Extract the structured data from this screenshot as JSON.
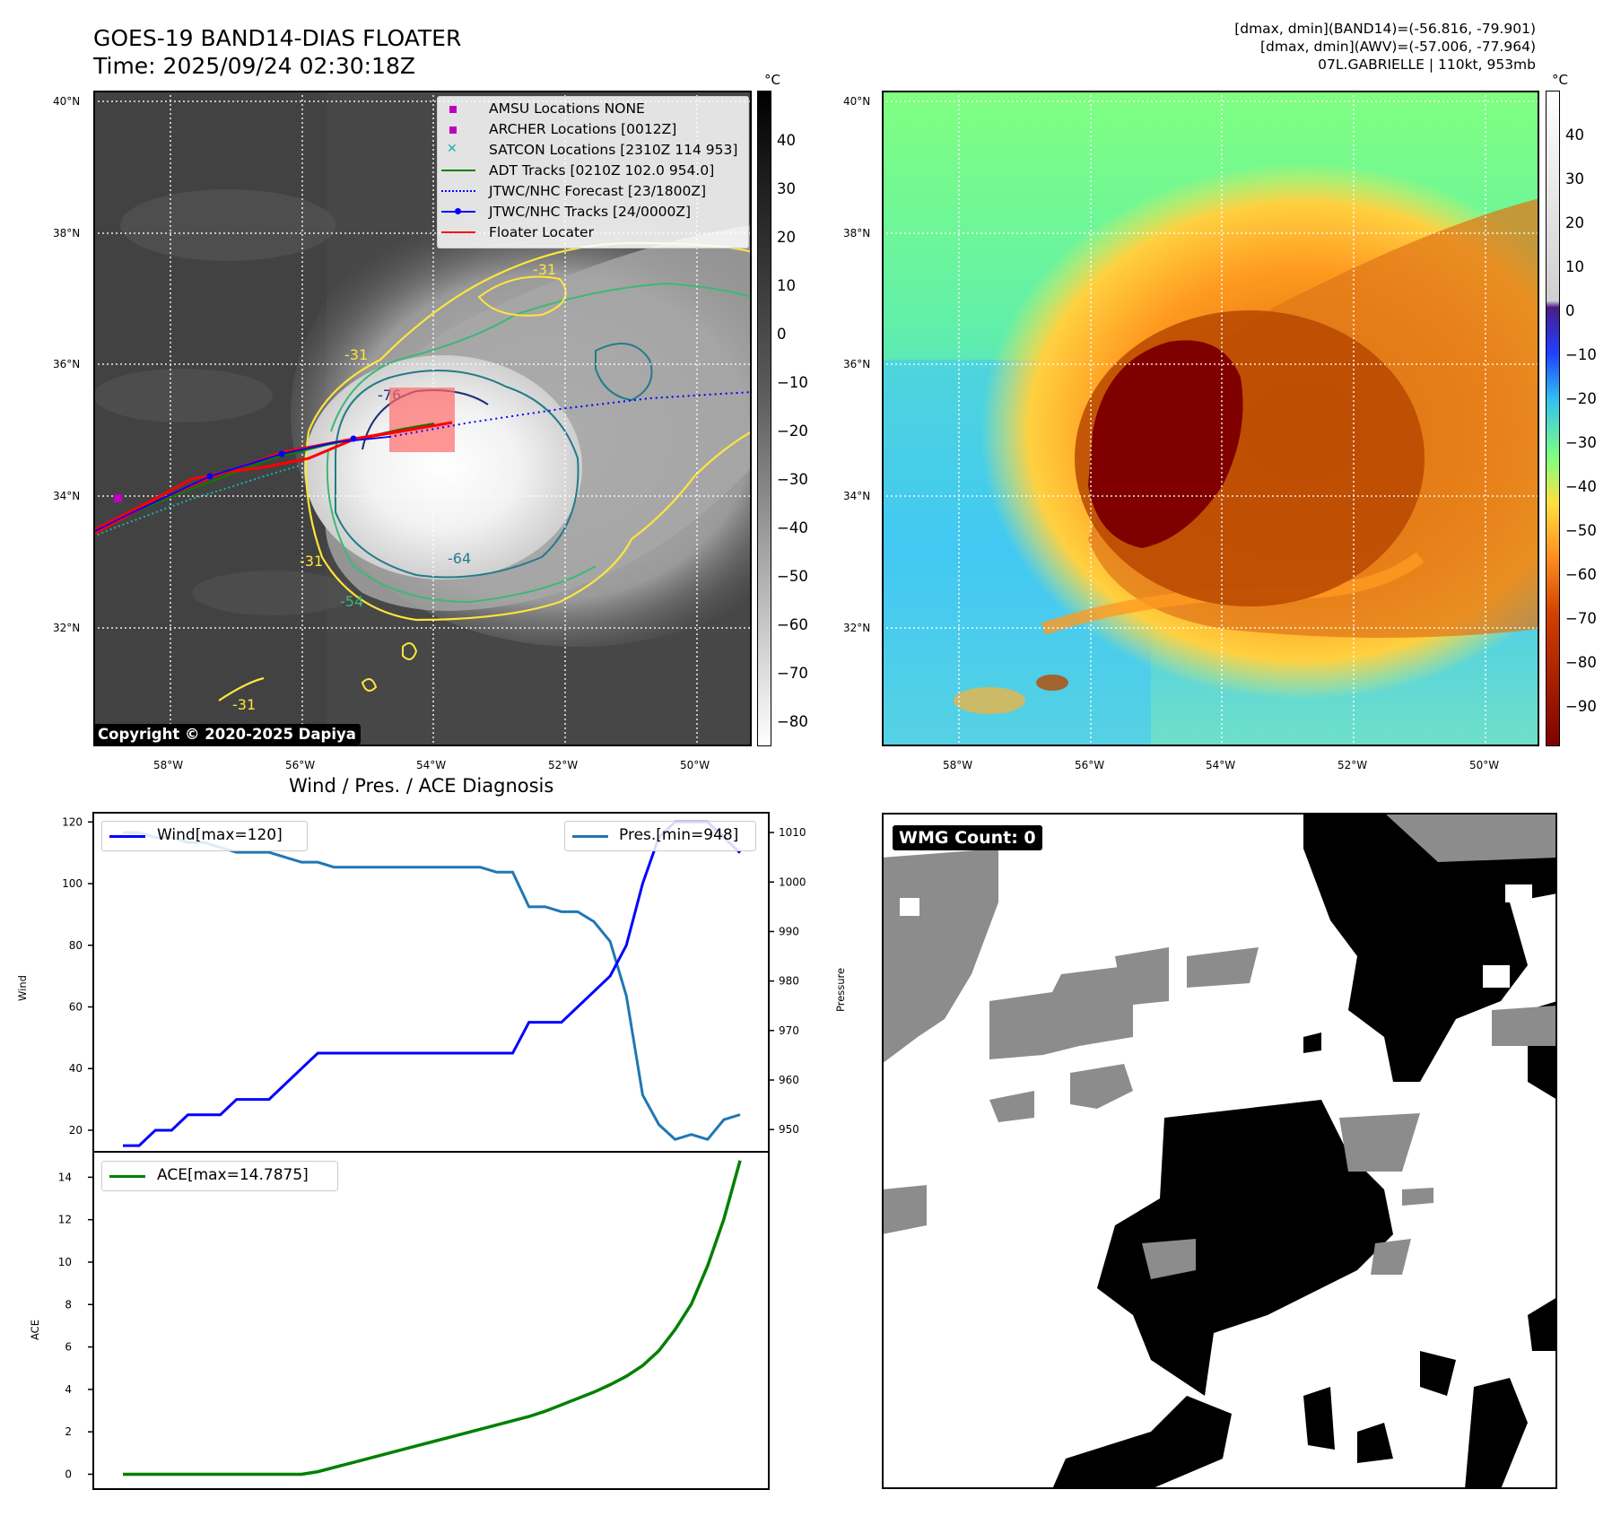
{
  "titles": {
    "main_line1": "GOES-19 BAND14-DIAS FLOATER",
    "main_line2": "Time: 2025/09/24 02:30:18Z",
    "info_line1": "[dmax, dmin](BAND14)=(-56.816, -79.901)",
    "info_line2": "[dmax, dmin](AWV)=(-57.006, -77.964)",
    "info_line3": "07L.GABRIELLE | 110kt, 953mb",
    "diagnosis": "Wind / Pres. / ACE Diagnosis",
    "copyright": "Copyright © 2020-2025 Dapiya",
    "wmg": "WMG Count: 0"
  },
  "map": {
    "lat_labels": [
      "40°N",
      "38°N",
      "36°N",
      "34°N",
      "32°N"
    ],
    "lon_labels": [
      "58°W",
      "56°W",
      "54°W",
      "52°W",
      "50°W"
    ],
    "contour_labels": [
      "-31",
      "-64",
      "-76",
      "-31",
      "-31",
      "-54",
      "-31"
    ],
    "legend": [
      {
        "label": "AMSU Locations NONE",
        "color": "#c000c0",
        "marker": "square"
      },
      {
        "label": "ARCHER Locations [0012Z]",
        "color": "#c000c0",
        "marker": "square"
      },
      {
        "label": "SATCON Locations [2310Z 114 953]",
        "color": "#1ab0a8",
        "marker": "x"
      },
      {
        "label": "ADT Tracks [0210Z 102.0 954.0]",
        "color": "#008000",
        "marker": "line"
      },
      {
        "label": "JTWC/NHC Forecast [23/1800Z]",
        "color": "#0000ff",
        "marker": "dotted"
      },
      {
        "label": "JTWC/NHC Tracks [24/0000Z]",
        "color": "#0000ff",
        "marker": "line-dot"
      },
      {
        "label": "Floater Locater",
        "color": "#ff0000",
        "marker": "line"
      }
    ]
  },
  "colorbars": {
    "unit": "°C",
    "left_ticks": [
      "40",
      "30",
      "20",
      "10",
      "0",
      "−10",
      "−20",
      "−30",
      "−40",
      "−50",
      "−60",
      "−70",
      "−80"
    ],
    "right_ticks": [
      "40",
      "30",
      "20",
      "10",
      "0",
      "−10",
      "−20",
      "−30",
      "−40",
      "−50",
      "−60",
      "−70",
      "−80",
      "−90"
    ]
  },
  "chart_data": [
    {
      "type": "line",
      "title": "Wind / Pres. / ACE Diagnosis",
      "ylabel": "Wind",
      "ylabel_right": "Pressure",
      "ylim": [
        13,
        123
      ],
      "ylim_right": [
        945.5,
        1014
      ],
      "y_ticks": [
        "120",
        "100",
        "80",
        "60",
        "40",
        "20"
      ],
      "y_ticks_right": [
        "1010",
        "1000",
        "990",
        "980",
        "970",
        "960",
        "950"
      ],
      "x": [
        0,
        1,
        2,
        3,
        4,
        5,
        6,
        7,
        8,
        9,
        10,
        11,
        12,
        13,
        14,
        15,
        16,
        17,
        18,
        19,
        20,
        21,
        22,
        23,
        24,
        25,
        26,
        27,
        28,
        29,
        30,
        31,
        32,
        33,
        34,
        35,
        36,
        37,
        38
      ],
      "series": [
        {
          "name": "Wind[max=120]",
          "axis": "left",
          "color": "#0000ff",
          "values": [
            15,
            15,
            20,
            20,
            25,
            25,
            25,
            30,
            30,
            30,
            35,
            40,
            45,
            45,
            45,
            45,
            45,
            45,
            45,
            45,
            45,
            45,
            45,
            45,
            45,
            55,
            55,
            55,
            60,
            65,
            70,
            80,
            100,
            115,
            120,
            120,
            120,
            115,
            110
          ]
        },
        {
          "name": "Pres.[min=948]",
          "axis": "right",
          "color": "#1f77b4",
          "values": [
            1010,
            1010,
            1009,
            1009,
            1008,
            1008,
            1007,
            1006,
            1006,
            1006,
            1005,
            1004,
            1004,
            1003,
            1003,
            1003,
            1003,
            1003,
            1003,
            1003,
            1003,
            1003,
            1003,
            1002,
            1002,
            995,
            995,
            994,
            994,
            992,
            988,
            977,
            957,
            951,
            948,
            949,
            948,
            952,
            953
          ]
        }
      ]
    },
    {
      "type": "line",
      "ylabel": "ACE",
      "ylim": [
        -0.7,
        15.2
      ],
      "y_ticks": [
        "14",
        "12",
        "10",
        "8",
        "6",
        "4",
        "2",
        "0"
      ],
      "x": [
        0,
        1,
        2,
        3,
        4,
        5,
        6,
        7,
        8,
        9,
        10,
        11,
        12,
        13,
        14,
        15,
        16,
        17,
        18,
        19,
        20,
        21,
        22,
        23,
        24,
        25,
        26,
        27,
        28,
        29,
        30,
        31,
        32,
        33,
        34,
        35,
        36,
        37,
        38
      ],
      "series": [
        {
          "name": "ACE[max=14.7875]",
          "color": "#008000",
          "values": [
            0,
            0,
            0,
            0,
            0,
            0,
            0,
            0,
            0,
            0,
            0,
            0,
            0.12,
            0.32,
            0.52,
            0.72,
            0.92,
            1.12,
            1.32,
            1.52,
            1.72,
            1.92,
            2.12,
            2.32,
            2.52,
            2.72,
            2.97,
            3.27,
            3.57,
            3.87,
            4.22,
            4.62,
            5.12,
            5.82,
            6.82,
            8.02,
            9.82,
            12.02,
            14.7875
          ]
        }
      ]
    }
  ]
}
